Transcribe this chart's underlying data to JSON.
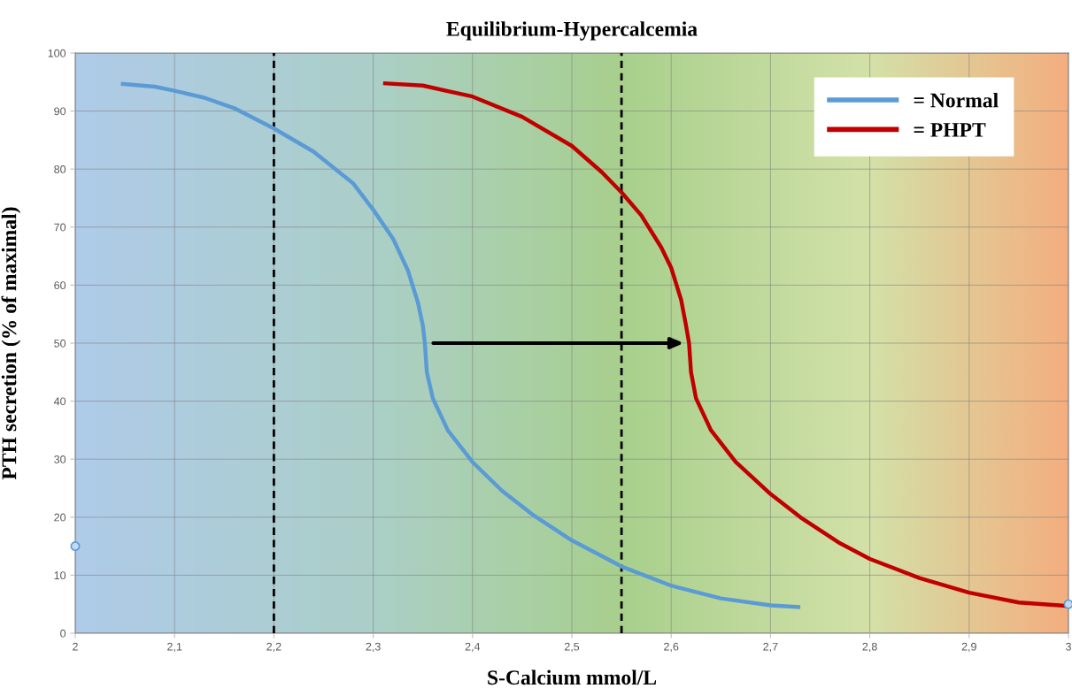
{
  "chart_data": {
    "type": "line",
    "title": "Equilibrium-Hypercalcemia",
    "xlabel": "S-Calcium mmol/L",
    "ylabel": "PTH secretion (% of maximal)",
    "series": [
      {
        "name": "= Normal",
        "color": "#5b9bd5",
        "x": [
          2.046,
          2.08,
          2.1,
          2.13,
          2.16,
          2.2,
          2.24,
          2.28,
          2.3,
          2.32,
          2.335,
          2.345,
          2.35,
          2.352,
          2.354,
          2.36,
          2.375,
          2.4,
          2.43,
          2.46,
          2.5,
          2.55,
          2.6,
          2.65,
          2.7,
          2.73
        ],
        "values": [
          94.7,
          94.2,
          93.5,
          92.3,
          90.5,
          87,
          83,
          77.5,
          73,
          68,
          62.5,
          57,
          53,
          50,
          45,
          40.5,
          35,
          29.5,
          24.5,
          20.5,
          16,
          11.5,
          8.2,
          6,
          4.8,
          4.5
        ]
      },
      {
        "name": "= PHPT",
        "color": "#c00000",
        "x": [
          2.31,
          2.35,
          2.4,
          2.45,
          2.5,
          2.53,
          2.55,
          2.57,
          2.59,
          2.6,
          2.61,
          2.615,
          2.618,
          2.62,
          2.625,
          2.64,
          2.665,
          2.7,
          2.73,
          2.77,
          2.8,
          2.85,
          2.9,
          2.95,
          3.0
        ],
        "values": [
          94.8,
          94.4,
          92.5,
          89,
          84,
          79.5,
          76,
          72,
          66.5,
          63,
          57.5,
          53,
          50,
          45,
          40.5,
          35,
          29.5,
          24,
          20,
          15.5,
          12.8,
          9.5,
          7,
          5.3,
          4.7
        ]
      },
      {
        "type": "scatter",
        "color": "#5b9bd5",
        "x": [
          2,
          3
        ],
        "values": [
          15,
          5
        ]
      }
    ],
    "xlim": [
      2,
      3
    ],
    "ylim": [
      0,
      100
    ],
    "xticks": [
      2,
      {
        "value": 2.1,
        "label": "2,1"
      },
      {
        "value": 2.2,
        "label": "2,2"
      },
      {
        "value": 2.3,
        "label": "2,3"
      },
      {
        "value": 2.4,
        "label": "2,4"
      },
      {
        "value": 2.5,
        "label": "2,5"
      },
      {
        "value": 2.6,
        "label": "2,6"
      },
      {
        "value": 2.7,
        "label": "2,7"
      },
      {
        "value": 2.8,
        "label": "2,8"
      },
      {
        "value": 2.9,
        "label": "2,9"
      },
      3
    ],
    "yticks": [
      0,
      10,
      20,
      30,
      40,
      50,
      60,
      70,
      80,
      90,
      100
    ],
    "ref_lines": [
      {
        "axis": "x",
        "value": 2.2,
        "color": "#000000",
        "line_style": "dashed"
      },
      {
        "axis": "x",
        "value": 2.55,
        "color": "#000000",
        "line_style": "dashed"
      }
    ],
    "grid": true,
    "legend": "top right"
  }
}
